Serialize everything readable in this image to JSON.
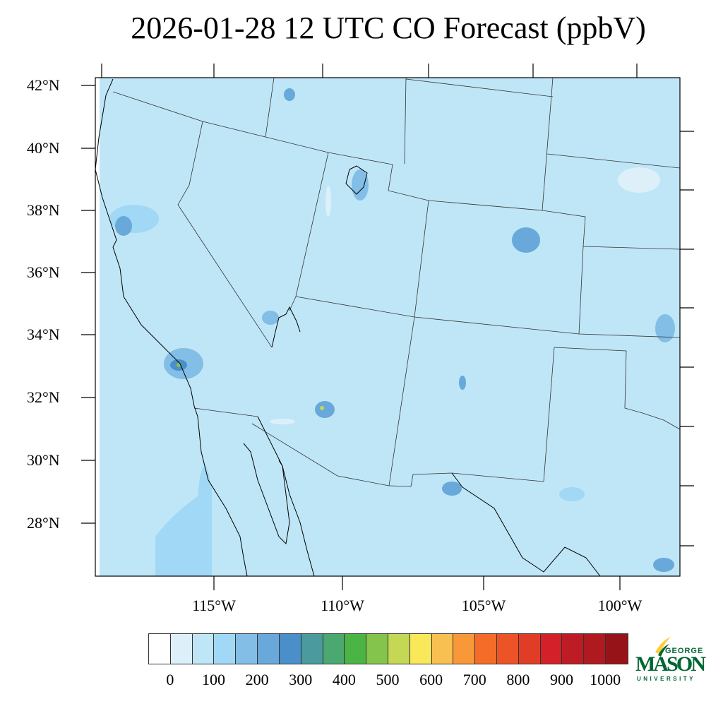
{
  "title": "2026-01-28 12 UTC CO Forecast (ppbV)",
  "map": {
    "background_fill": "#BFE6F7",
    "lat_labels": [
      "42°N",
      "40°N",
      "38°N",
      "36°N",
      "34°N",
      "32°N",
      "30°N",
      "28°N"
    ],
    "lon_labels": [
      "115°W",
      "110°W",
      "105°W",
      "100°W"
    ]
  },
  "colorbar": {
    "colors": [
      "#FFFFFF",
      "#DDF0FA",
      "#BFE6F7",
      "#A0D8F5",
      "#82BEE6",
      "#68A8DA",
      "#4A8FC9",
      "#4A9A9E",
      "#4AA870",
      "#4AB545",
      "#84C44C",
      "#C4D855",
      "#F8E85A",
      "#F8C050",
      "#F89838",
      "#F56C28",
      "#EC5428",
      "#E13C26",
      "#D42028",
      "#BE1C24",
      "#AE1A20",
      "#961418"
    ],
    "labels": [
      "0",
      "100",
      "200",
      "300",
      "400",
      "500",
      "600",
      "700",
      "800",
      "900",
      "1000"
    ]
  },
  "logo": {
    "line1": "GEORGE",
    "line2": "MASON",
    "line3": "UNIVERSITY",
    "color": "#006633",
    "accent": "#FFCC33"
  }
}
